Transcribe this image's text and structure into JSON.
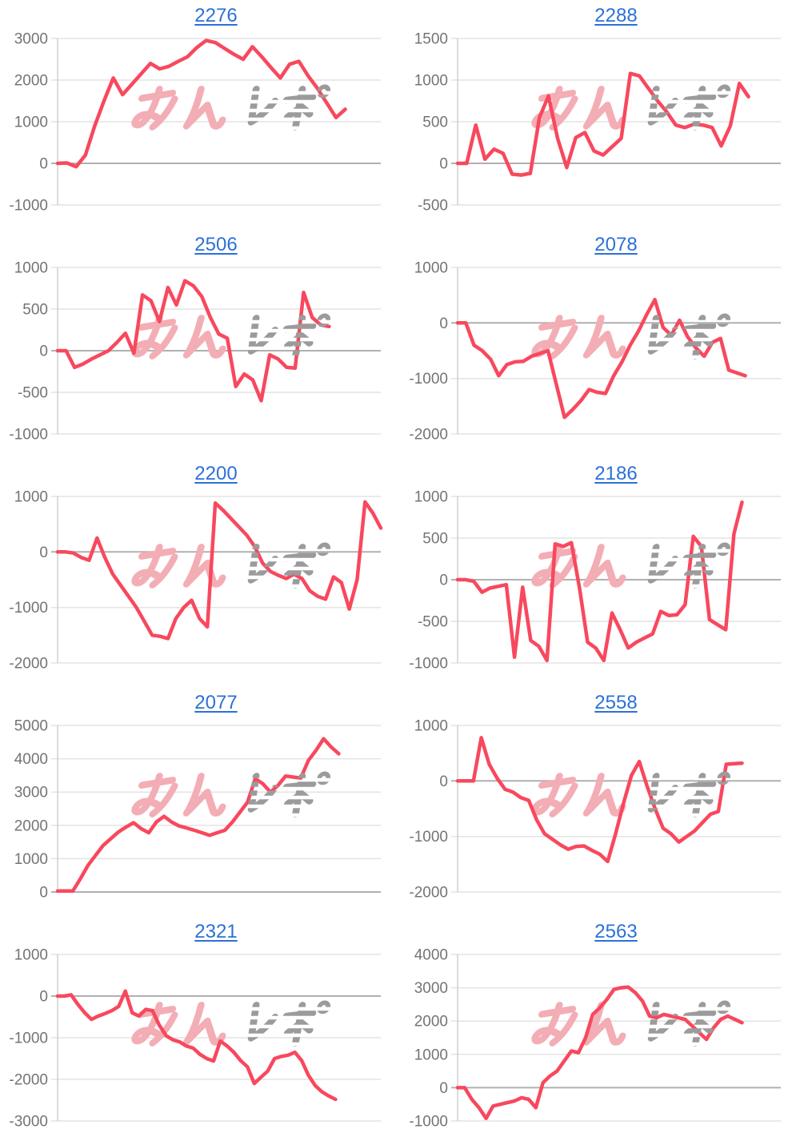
{
  "page": {
    "background": "#ffffff"
  },
  "style": {
    "line_color": "#f8485e",
    "title_color": "#2b71d8",
    "grid_color": "#e3e3e3",
    "zero_line_color": "#b0b0b0",
    "axis_line_color": "#d0d0d0",
    "label_color": "#747474",
    "watermark_pink": "#f3adb5",
    "watermark_gray": "#9b9b9b"
  },
  "watermark": {
    "pink_text": "みん",
    "gray_text": "レポ"
  },
  "chart_data": [
    {
      "type": "line",
      "title": "2276",
      "xlabel": "",
      "ylabel": "",
      "grid": true,
      "ylim": [
        -1000,
        3000
      ],
      "yticks": [
        3000,
        2000,
        1000,
        0,
        -1000
      ],
      "end_fraction": 0.89,
      "values": [
        0,
        10,
        -80,
        200,
        900,
        1500,
        2050,
        1650,
        1900,
        2150,
        2400,
        2270,
        2330,
        2450,
        2560,
        2780,
        2950,
        2900,
        2760,
        2620,
        2500,
        2800,
        2560,
        2300,
        2050,
        2380,
        2450,
        2100,
        1800,
        1450,
        1100,
        1300
      ]
    },
    {
      "type": "line",
      "title": "2288",
      "xlabel": "",
      "ylabel": "",
      "grid": true,
      "ylim": [
        -500,
        1500
      ],
      "yticks": [
        1500,
        1000,
        500,
        0,
        -500
      ],
      "end_fraction": 0.9,
      "values": [
        0,
        0,
        460,
        50,
        170,
        120,
        -130,
        -140,
        -120,
        550,
        810,
        300,
        -50,
        310,
        370,
        150,
        100,
        200,
        300,
        1080,
        1050,
        900,
        750,
        620,
        460,
        430,
        470,
        460,
        430,
        210,
        450,
        960,
        800
      ]
    },
    {
      "type": "line",
      "title": "2506",
      "xlabel": "",
      "ylabel": "",
      "grid": true,
      "ylim": [
        -1000,
        1000
      ],
      "yticks": [
        1000,
        500,
        0,
        -500,
        -1000
      ],
      "end_fraction": 0.84,
      "values": [
        0,
        0,
        -200,
        -160,
        -100,
        -50,
        0,
        100,
        210,
        -30,
        670,
        600,
        350,
        760,
        550,
        840,
        780,
        650,
        400,
        200,
        150,
        -430,
        -280,
        -350,
        -600,
        -50,
        -100,
        -200,
        -210,
        700,
        400,
        310,
        290
      ]
    },
    {
      "type": "line",
      "title": "2078",
      "xlabel": "",
      "ylabel": "",
      "grid": true,
      "ylim": [
        -2000,
        1000
      ],
      "yticks": [
        1000,
        0,
        -1000,
        -2000
      ],
      "end_fraction": 0.89,
      "values": [
        0,
        0,
        -400,
        -500,
        -650,
        -950,
        -750,
        -700,
        -690,
        -600,
        -550,
        -500,
        -1100,
        -1700,
        -1560,
        -1400,
        -1200,
        -1250,
        -1270,
        -950,
        -700,
        -400,
        -150,
        150,
        420,
        -80,
        -220,
        50,
        -250,
        -450,
        -600,
        -350,
        -280,
        -850,
        -900,
        -950
      ]
    },
    {
      "type": "line",
      "title": "2200",
      "xlabel": "",
      "ylabel": "",
      "grid": true,
      "ylim": [
        -2000,
        1000
      ],
      "yticks": [
        1000,
        0,
        -1000,
        -2000
      ],
      "end_fraction": 1.0,
      "values": [
        0,
        0,
        -20,
        -100,
        -150,
        250,
        -100,
        -400,
        -600,
        -800,
        -1000,
        -1250,
        -1500,
        -1520,
        -1560,
        -1200,
        -1000,
        -870,
        -1200,
        -1350,
        880,
        750,
        600,
        450,
        300,
        100,
        -200,
        -350,
        -420,
        -480,
        -400,
        -480,
        -700,
        -800,
        -850,
        -450,
        -550,
        -1030,
        -500,
        900,
        700,
        430
      ]
    },
    {
      "type": "line",
      "title": "2186",
      "xlabel": "",
      "ylabel": "",
      "grid": true,
      "ylim": [
        -1000,
        1000
      ],
      "yticks": [
        1000,
        500,
        0,
        -500,
        -1000
      ],
      "end_fraction": 0.88,
      "values": [
        0,
        0,
        -20,
        -150,
        -100,
        -80,
        -60,
        -930,
        -90,
        -730,
        -800,
        -970,
        430,
        400,
        445,
        -100,
        -750,
        -820,
        -970,
        -400,
        -600,
        -820,
        -750,
        -700,
        -650,
        -380,
        -430,
        -420,
        -300,
        520,
        400,
        -480,
        -540,
        -600,
        550,
        930
      ]
    },
    {
      "type": "line",
      "title": "2077",
      "xlabel": "",
      "ylabel": "",
      "grid": true,
      "ylim": [
        0,
        5000
      ],
      "yticks": [
        5000,
        4000,
        3000,
        2000,
        1000,
        0
      ],
      "end_fraction": 0.87,
      "values": [
        30,
        30,
        30,
        400,
        800,
        1100,
        1400,
        1600,
        1800,
        1950,
        2080,
        1900,
        1780,
        2100,
        2270,
        2100,
        1980,
        1920,
        1850,
        1780,
        1700,
        1780,
        1850,
        2100,
        2400,
        2700,
        3400,
        3250,
        3000,
        3200,
        3480,
        3450,
        3420,
        3950,
        4250,
        4600,
        4350,
        4150
      ]
    },
    {
      "type": "line",
      "title": "2558",
      "xlabel": "",
      "ylabel": "",
      "grid": true,
      "ylim": [
        -2000,
        1000
      ],
      "yticks": [
        1000,
        0,
        -1000,
        -2000
      ],
      "end_fraction": 0.88,
      "values": [
        0,
        0,
        0,
        780,
        300,
        50,
        -150,
        -200,
        -300,
        -350,
        -700,
        -950,
        -1050,
        -1150,
        -1230,
        -1180,
        -1170,
        -1250,
        -1320,
        -1450,
        -950,
        -400,
        100,
        350,
        -100,
        -500,
        -850,
        -950,
        -1100,
        -1000,
        -900,
        -750,
        -600,
        -550,
        300,
        310,
        320
      ]
    },
    {
      "type": "line",
      "title": "2321",
      "xlabel": "",
      "ylabel": "",
      "grid": true,
      "ylim": [
        -3000,
        1000
      ],
      "yticks": [
        1000,
        0,
        -1000,
        -2000,
        -3000
      ],
      "end_fraction": 0.86,
      "values": [
        0,
        0,
        30,
        -200,
        -400,
        -560,
        -480,
        -420,
        -350,
        -250,
        120,
        -400,
        -480,
        -320,
        -350,
        -700,
        -950,
        -1050,
        -1100,
        -1200,
        -1250,
        -1400,
        -1500,
        -1560,
        -1080,
        -1200,
        -1350,
        -1550,
        -1700,
        -2100,
        -1950,
        -1800,
        -1500,
        -1450,
        -1420,
        -1350,
        -1550,
        -1900,
        -2150,
        -2300,
        -2400,
        -2480
      ]
    },
    {
      "type": "line",
      "title": "2563",
      "xlabel": "",
      "ylabel": "",
      "grid": true,
      "ylim": [
        -1000,
        4000
      ],
      "yticks": [
        4000,
        3000,
        2000,
        1000,
        0,
        -1000
      ],
      "end_fraction": 0.88,
      "values": [
        0,
        0,
        -350,
        -600,
        -920,
        -550,
        -500,
        -450,
        -400,
        -300,
        -350,
        -600,
        150,
        350,
        500,
        800,
        1100,
        1050,
        1500,
        2200,
        2400,
        2650,
        2950,
        3000,
        3020,
        2850,
        2600,
        2150,
        2100,
        2200,
        2150,
        2100,
        2050,
        1850,
        1650,
        1450,
        1800,
        2050,
        2150,
        2050,
        1950
      ]
    }
  ]
}
